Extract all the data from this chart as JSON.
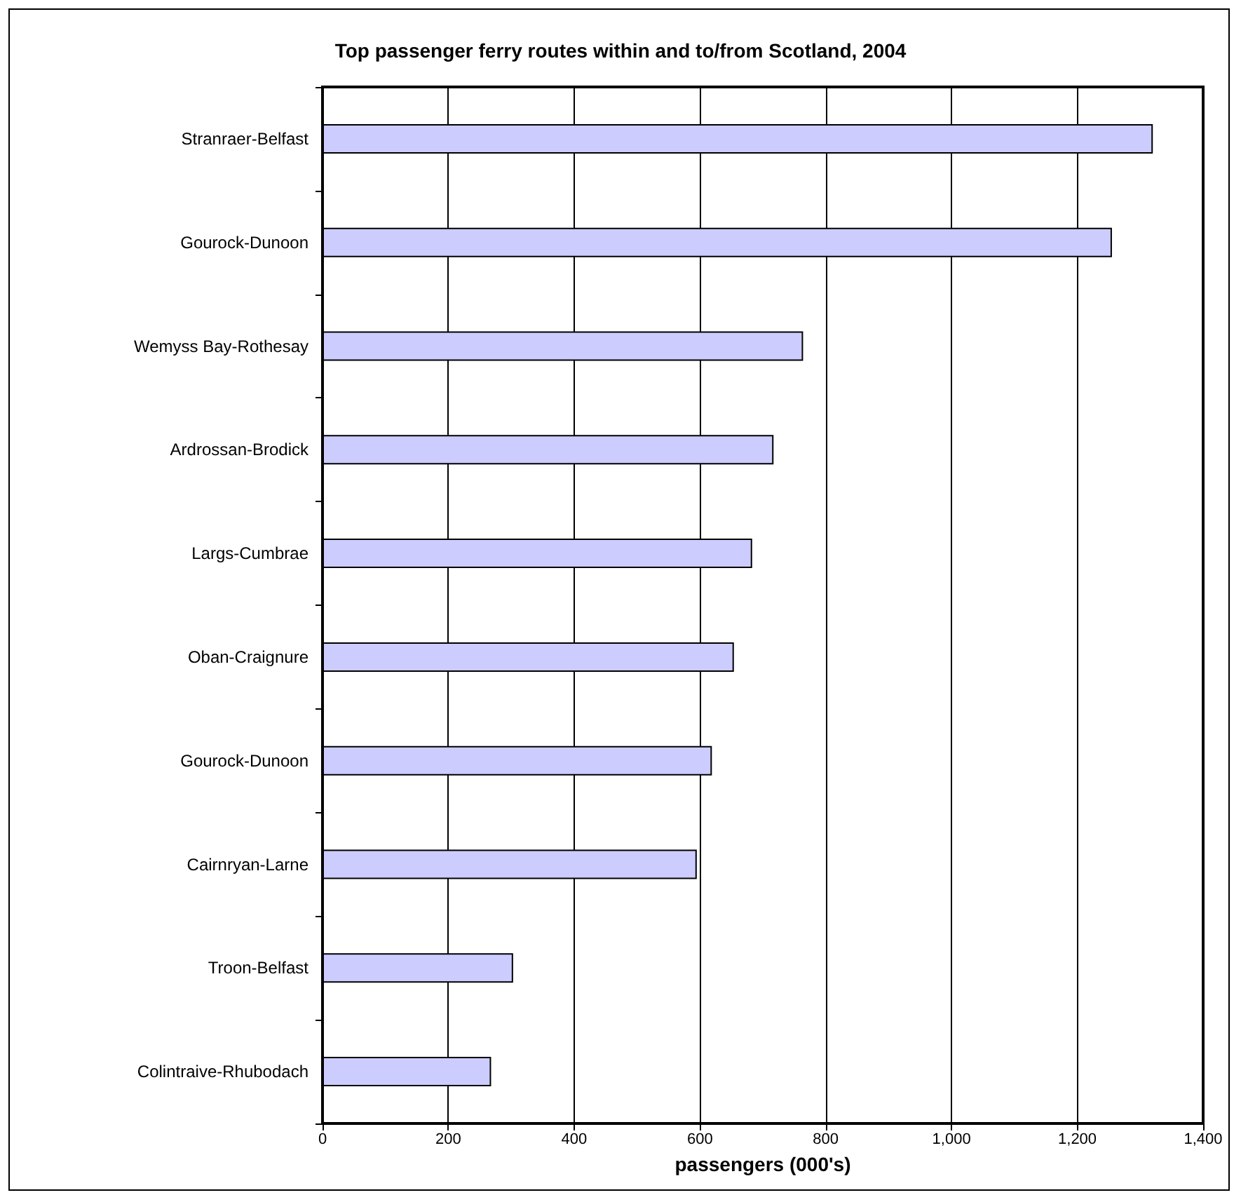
{
  "chart_data": {
    "type": "bar",
    "orientation": "horizontal",
    "title": "Top passenger ferry routes within and to/from Scotland, 2004",
    "xlabel": "passengers (000's)",
    "categories": [
      "Stranraer-Belfast",
      "Gourock-Dunoon",
      "Wemyss Bay-Rothesay",
      "Ardrossan-Brodick",
      "Largs-Cumbrae",
      "Oban-Craignure",
      "Gourock-Dunoon",
      "Cairnryan-Larne",
      "Troon-Belfast",
      "Colintraive-Rhubodach"
    ],
    "values": [
      1320,
      1255,
      764,
      717,
      683,
      654,
      619,
      595,
      303,
      268
    ],
    "color": "#ccccff",
    "xlim": [
      0,
      1400
    ],
    "xticks": [
      0,
      200,
      400,
      600,
      800,
      {
        "value": 1000,
        "label": "1,000"
      },
      {
        "value": 1200,
        "label": "1,200"
      },
      {
        "value": 1400,
        "label": "1,400"
      }
    ],
    "grid": "x"
  }
}
